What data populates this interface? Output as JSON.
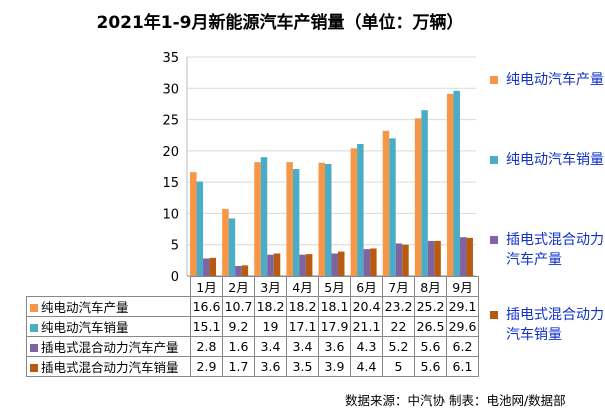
{
  "chart_data": {
    "type": "bar",
    "title": "2021年1-9月新能源汽车产销量（单位：万辆）",
    "categories": [
      "1月",
      "2月",
      "3月",
      "4月",
      "5月",
      "6月",
      "7月",
      "8月",
      "9月"
    ],
    "ylim": [
      0,
      35
    ],
    "yticks": [
      0,
      5,
      10,
      15,
      20,
      25,
      30,
      35
    ],
    "grid": true,
    "legend_placement": "right",
    "series": [
      {
        "name": "纯电动汽车产量",
        "color": "#F79646",
        "values": [
          16.6,
          10.7,
          18.2,
          18.2,
          18.1,
          20.4,
          23.2,
          25.2,
          29.1
        ]
      },
      {
        "name": "纯电动汽车销量",
        "color": "#4BACC6",
        "values": [
          15.1,
          9.2,
          19,
          17.1,
          17.9,
          21.1,
          22,
          26.5,
          29.6
        ]
      },
      {
        "name": "插电式混合动力汽车产量",
        "color": "#8064A2",
        "values": [
          2.8,
          1.6,
          3.4,
          3.4,
          3.6,
          4.3,
          5.2,
          5.6,
          6.2
        ]
      },
      {
        "name": "插电式混合动力汽车销量",
        "color": "#B85A10",
        "values": [
          2.9,
          1.7,
          3.6,
          3.5,
          3.9,
          4.4,
          5,
          5.6,
          6.1
        ]
      }
    ]
  },
  "legend_text_color": "#1030C8",
  "source": "数据来源：中汽协  制表：电池网/数据部"
}
